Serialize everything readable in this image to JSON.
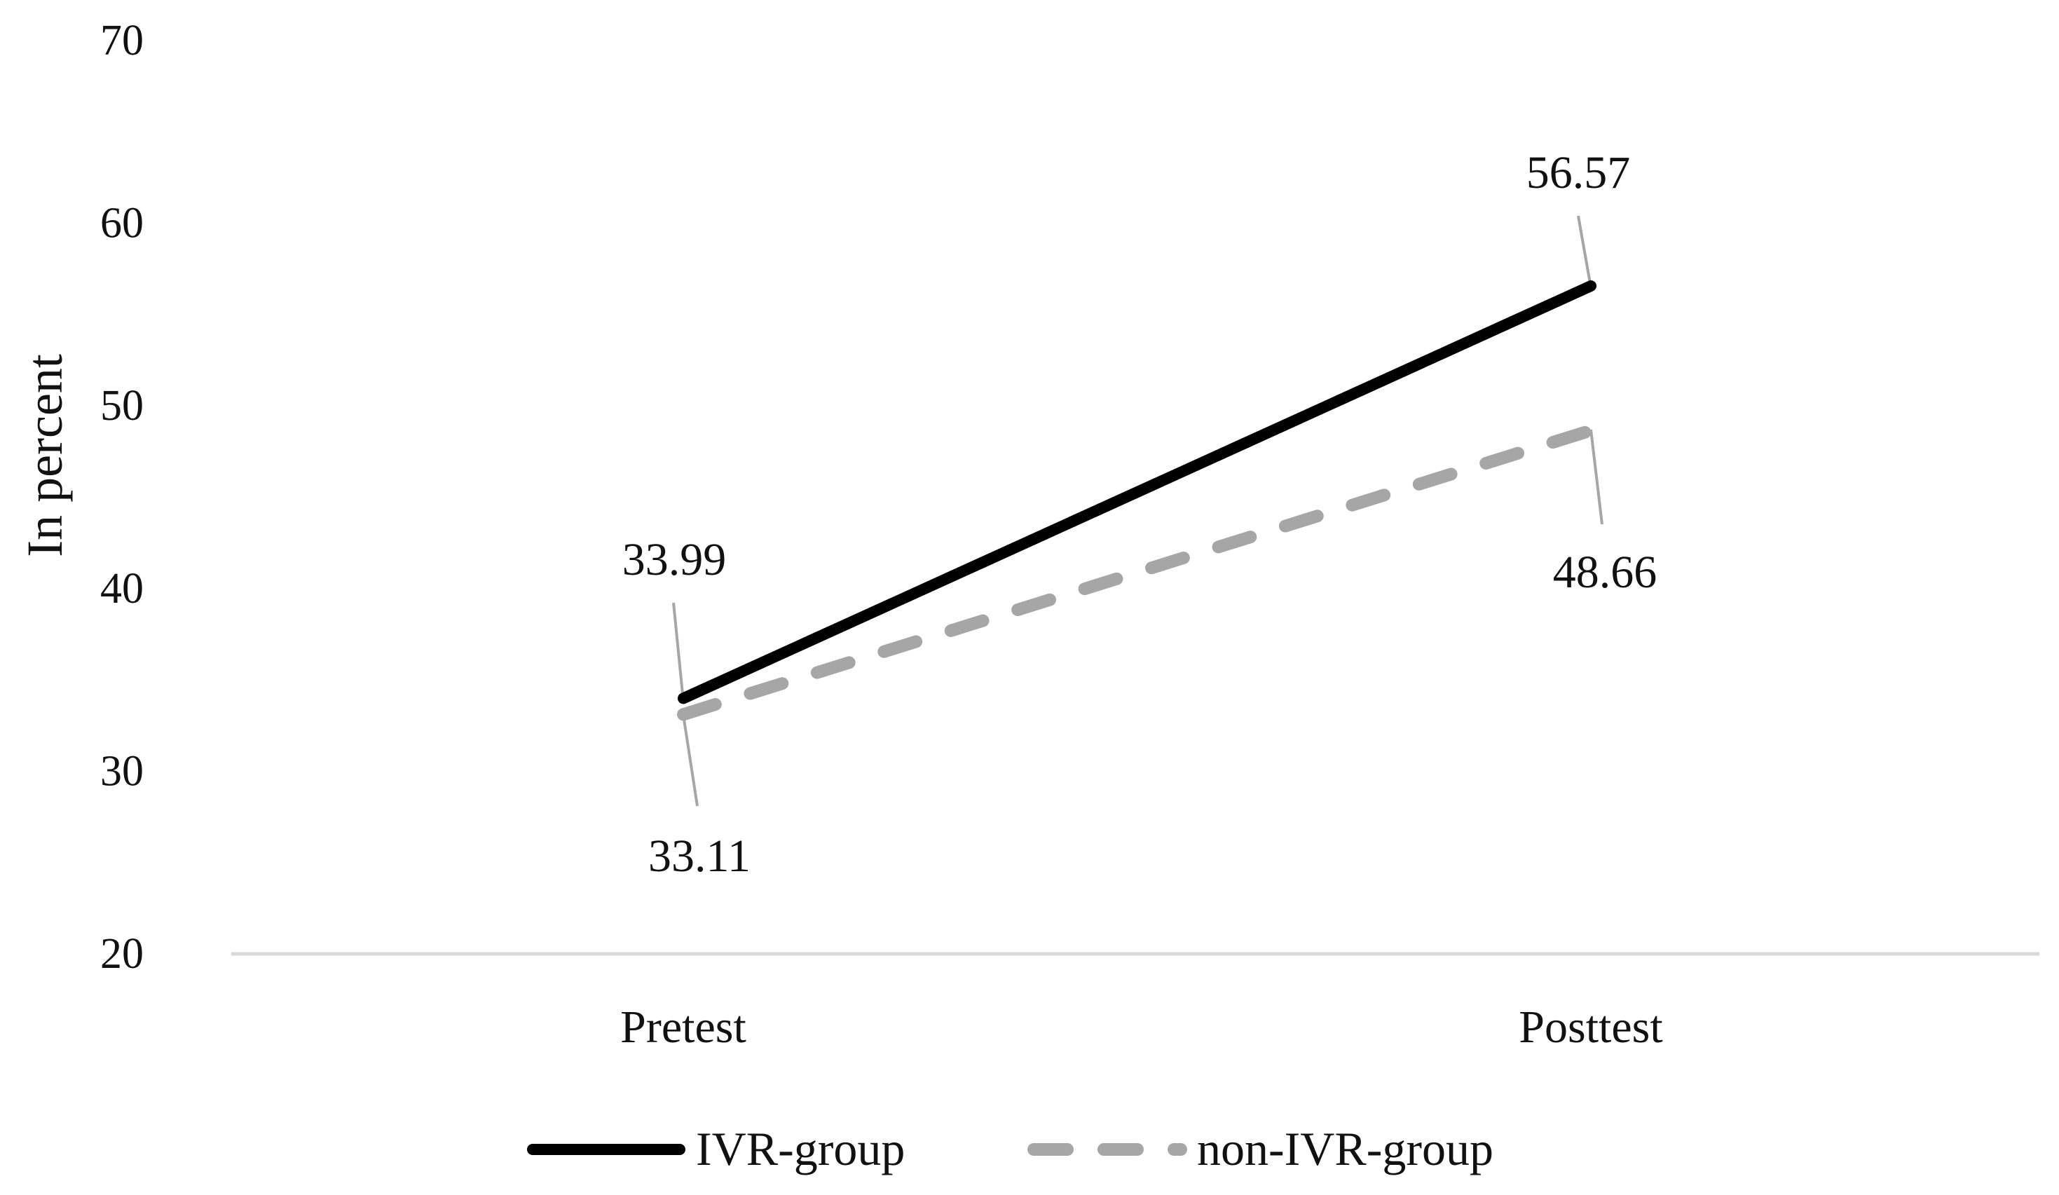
{
  "chart_data": {
    "type": "line",
    "title": "",
    "xlabel": "",
    "ylabel": "In percent",
    "categories": [
      "Pretest",
      "Posttest"
    ],
    "ylim": [
      20,
      70
    ],
    "yticks": [
      "20",
      "30",
      "40",
      "50",
      "60",
      "70"
    ],
    "grid": false,
    "legend_position": "bottom",
    "series": [
      {
        "name": "IVR-group",
        "values": [
          33.99,
          56.57
        ],
        "labels": [
          "33.99",
          "56.57"
        ],
        "color": "#000000",
        "style": "solid"
      },
      {
        "name": "non-IVR-group",
        "values": [
          33.11,
          48.66
        ],
        "labels": [
          "33.11",
          "48.66"
        ],
        "color": "#a6a6a6",
        "style": "dashed"
      }
    ],
    "axis_color": "#d9d9d9",
    "leader_line_color": "#a6a6a6"
  }
}
